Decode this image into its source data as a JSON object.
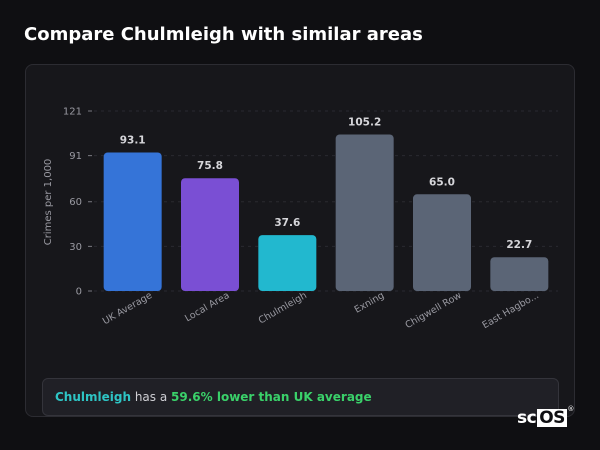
{
  "page": {
    "title": "Compare Chulmleigh with similar areas"
  },
  "summary": {
    "area": "Chulmleigh",
    "middle": " has a ",
    "highlight": "59.6% lower than UK average"
  },
  "logo": {
    "text_a": "sc",
    "text_b": "OS",
    "mark": "®"
  },
  "colors": {
    "uk_average": "#3574d8",
    "local_area": "#7a4fd4",
    "target": "#22b8cf",
    "comparison": "#5b6576",
    "highlight_area": "#2ec4c4",
    "highlight_value": "#3ad16a"
  },
  "chart_data": {
    "type": "bar",
    "categories": [
      "UK Average",
      "Local Area",
      "Chulmleigh",
      "Exning",
      "Chigwell Row",
      "East Hagbo..."
    ],
    "values": [
      93.1,
      75.8,
      37.6,
      105.2,
      65.0,
      22.7
    ],
    "value_labels": [
      "93.1",
      "75.8",
      "37.6",
      "105.2",
      "65.0",
      "22.7"
    ],
    "bar_colors": [
      "#3574d8",
      "#7a4fd4",
      "#22b8cf",
      "#5b6576",
      "#5b6576",
      "#5b6576"
    ],
    "ylabel": "Crimes per 1,000",
    "xlabel": "",
    "yticks": [
      0,
      30,
      60,
      91,
      121
    ],
    "ylim": [
      0,
      121
    ],
    "grid": true
  }
}
